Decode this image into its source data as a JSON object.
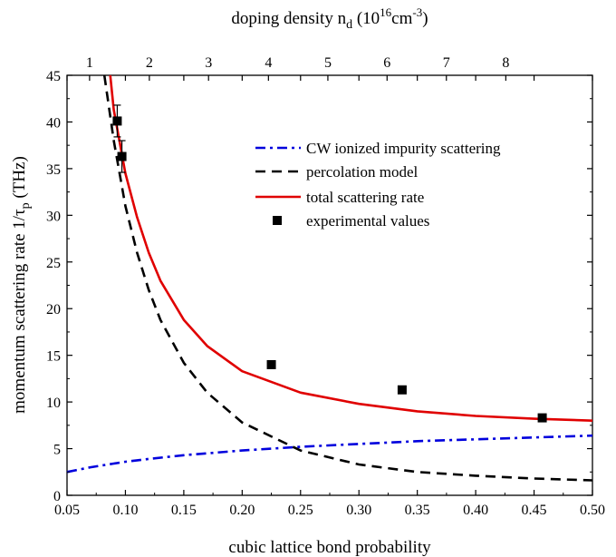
{
  "chart_data": {
    "type": "line",
    "title": "",
    "xlabel": "cubic lattice bond probability",
    "ylabel": "momentum scattering rate 1/τ",
    "ylabel_sub": "p",
    "ylabel_unit": "(THz)",
    "x2label": "doping density n",
    "x2label_sub": "d",
    "x2label_unit_pre": "(10",
    "x2label_unit_sup1": "16",
    "x2label_unit_mid": "cm",
    "x2label_unit_sup2": "-3",
    "x2label_unit_post": ")",
    "xlim": [
      0.05,
      0.5
    ],
    "ylim": [
      0,
      45
    ],
    "xticks": [
      "0.05",
      "0.10",
      "0.15",
      "0.20",
      "0.25",
      "0.30",
      "0.35",
      "0.40",
      "0.45",
      "0.50"
    ],
    "yticks": [
      "0",
      "5",
      "10",
      "15",
      "20",
      "25",
      "30",
      "35",
      "40",
      "45"
    ],
    "x2ticks": [
      {
        "label": "1",
        "x": 0.0693
      },
      {
        "label": "2",
        "x": 0.1205
      },
      {
        "label": "3",
        "x": 0.1712
      },
      {
        "label": "4",
        "x": 0.2225
      },
      {
        "label": "5",
        "x": 0.2734
      },
      {
        "label": "6",
        "x": 0.3241
      },
      {
        "label": "7",
        "x": 0.3749
      },
      {
        "label": "8",
        "x": 0.4258
      }
    ],
    "grid": false,
    "legend_position": "upper-right",
    "series": [
      {
        "name": "CW ionized impurity scattering",
        "style": "dashdot",
        "color": "#0000dd",
        "x": [
          0.05,
          0.07,
          0.09,
          0.1,
          0.12,
          0.15,
          0.2,
          0.25,
          0.3,
          0.35,
          0.4,
          0.45,
          0.5
        ],
        "y": [
          2.5,
          3.0,
          3.4,
          3.6,
          3.9,
          4.3,
          4.8,
          5.2,
          5.5,
          5.8,
          6.0,
          6.2,
          6.4
        ]
      },
      {
        "name": "percolation model",
        "style": "dashed",
        "color": "#000000",
        "x": [
          0.082,
          0.09,
          0.1,
          0.11,
          0.12,
          0.13,
          0.15,
          0.17,
          0.2,
          0.25,
          0.3,
          0.35,
          0.4,
          0.45,
          0.5
        ],
        "y": [
          45.0,
          38.0,
          31.0,
          26.0,
          22.0,
          18.8,
          14.2,
          11.0,
          7.8,
          4.8,
          3.3,
          2.5,
          2.1,
          1.8,
          1.6
        ]
      },
      {
        "name": "total scattering rate",
        "style": "solid",
        "color": "#e00000",
        "x": [
          0.087,
          0.09,
          0.1,
          0.11,
          0.12,
          0.13,
          0.15,
          0.17,
          0.2,
          0.25,
          0.3,
          0.35,
          0.4,
          0.45,
          0.5
        ],
        "y": [
          45.0,
          41.3,
          34.5,
          29.8,
          26.0,
          23.0,
          18.8,
          16.0,
          13.3,
          11.0,
          9.8,
          9.0,
          8.5,
          8.2,
          8.0
        ]
      },
      {
        "name": "experimental values",
        "style": "marker",
        "color": "#000000",
        "points": [
          {
            "x": 0.093,
            "y": 40.1,
            "err": 1.7
          },
          {
            "x": 0.097,
            "y": 36.3,
            "err": 1.7
          },
          {
            "x": 0.225,
            "y": 14.0,
            "err": 0
          },
          {
            "x": 0.337,
            "y": 11.3,
            "err": 0
          },
          {
            "x": 0.457,
            "y": 8.3,
            "err": 0
          }
        ]
      }
    ]
  }
}
